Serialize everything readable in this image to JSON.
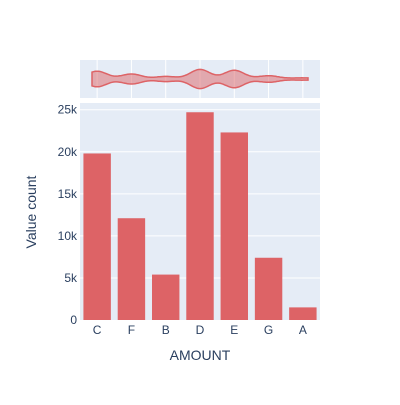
{
  "chart_data": {
    "type": "bar",
    "title": "",
    "xlabel": "AMOUNT",
    "ylabel": "Value count",
    "categories": [
      "C",
      "F",
      "B",
      "D",
      "E",
      "G",
      "A"
    ],
    "values": [
      19800,
      12100,
      5400,
      24700,
      22300,
      7400,
      1500
    ],
    "ylim": [
      0,
      25800
    ],
    "yticks": [
      0,
      5000,
      10000,
      15000,
      20000,
      25000
    ],
    "ytick_labels": [
      "0",
      "5k",
      "10k",
      "15k",
      "20k",
      "25k"
    ],
    "grid": true,
    "bar_color": "#dd6366",
    "marginal": {
      "type": "violin",
      "color": "#dd6366"
    }
  }
}
